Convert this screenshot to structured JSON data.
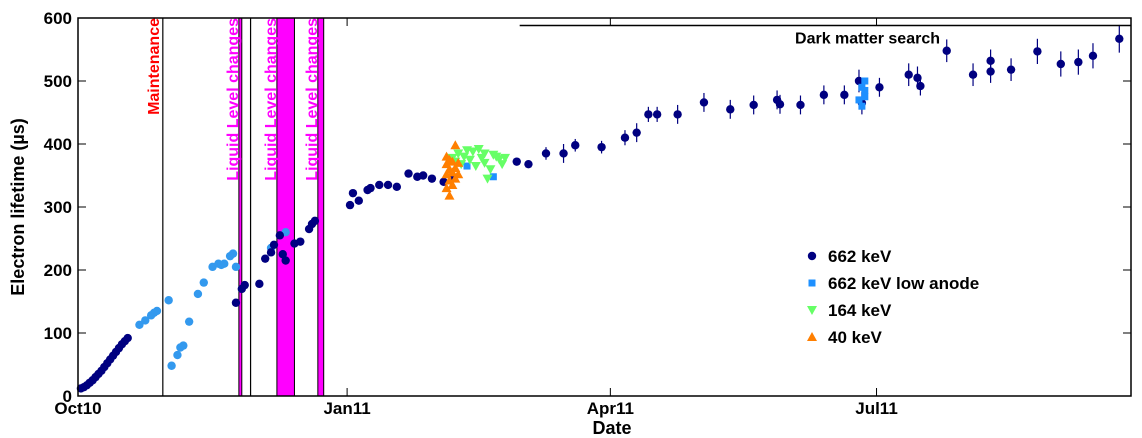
{
  "chart_data": {
    "type": "scatter",
    "title": "",
    "xlabel": "Date",
    "ylabel": "Electron lifetime (µs)",
    "xlim": [
      "2010-10-01",
      "2011-09-26"
    ],
    "ylim": [
      0,
      600
    ],
    "yticks": [
      0,
      100,
      200,
      300,
      400,
      500,
      600
    ],
    "xticks": [
      {
        "date": "2010-10-01",
        "label": "Oct10"
      },
      {
        "date": "2011-01-01",
        "label": "Jan11"
      },
      {
        "date": "2011-04-01",
        "label": "Apr11"
      },
      {
        "date": "2011-07-01",
        "label": "Jul11"
      }
    ],
    "grid": false,
    "legend": "right",
    "series": [
      {
        "name": "662 keV",
        "color": "#000080",
        "marker": "circle",
        "points": [
          [
            "2010-10-02",
            12,
            0
          ],
          [
            "2010-10-03",
            14,
            0
          ],
          [
            "2010-10-04",
            17,
            0
          ],
          [
            "2010-10-05",
            21,
            0
          ],
          [
            "2010-10-06",
            25,
            0
          ],
          [
            "2010-10-07",
            30,
            0
          ],
          [
            "2010-10-08",
            35,
            0
          ],
          [
            "2010-10-09",
            40,
            0
          ],
          [
            "2010-10-10",
            46,
            0
          ],
          [
            "2010-10-11",
            52,
            0
          ],
          [
            "2010-10-12",
            58,
            0
          ],
          [
            "2010-10-13",
            64,
            0
          ],
          [
            "2010-10-14",
            70,
            0
          ],
          [
            "2010-10-15",
            76,
            0
          ],
          [
            "2010-10-16",
            82,
            0
          ],
          [
            "2010-10-17",
            87,
            0
          ],
          [
            "2010-10-18",
            92,
            0
          ],
          [
            "2010-11-24",
            148,
            0
          ],
          [
            "2010-11-26",
            170,
            0
          ],
          [
            "2010-11-27",
            176,
            0
          ],
          [
            "2010-12-02",
            178,
            0
          ],
          [
            "2010-12-04",
            218,
            0
          ],
          [
            "2010-12-06",
            228,
            0
          ],
          [
            "2010-12-07",
            240,
            0
          ],
          [
            "2010-12-09",
            255,
            0
          ],
          [
            "2010-12-10",
            225,
            0
          ],
          [
            "2010-12-11",
            215,
            0
          ],
          [
            "2010-12-14",
            242,
            0
          ],
          [
            "2010-12-16",
            245,
            0
          ],
          [
            "2010-12-19",
            265,
            0
          ],
          [
            "2010-12-20",
            273,
            0
          ],
          [
            "2010-12-21",
            278,
            0
          ],
          [
            "2011-01-02",
            303,
            0
          ],
          [
            "2011-01-03",
            322,
            0
          ],
          [
            "2011-01-05",
            310,
            0
          ],
          [
            "2011-01-08",
            327,
            0
          ],
          [
            "2011-01-09",
            330,
            0
          ],
          [
            "2011-01-12",
            335,
            0
          ],
          [
            "2011-01-15",
            335,
            0
          ],
          [
            "2011-01-18",
            332,
            0
          ],
          [
            "2011-01-22",
            353,
            0
          ],
          [
            "2011-01-25",
            348,
            0
          ],
          [
            "2011-01-27",
            350,
            0
          ],
          [
            "2011-01-30",
            345,
            0
          ],
          [
            "2011-02-03",
            340,
            0
          ],
          [
            "2011-02-06",
            345,
            0
          ],
          [
            "2011-02-28",
            372,
            6
          ],
          [
            "2011-03-04",
            368,
            6
          ],
          [
            "2011-03-10",
            385,
            10
          ],
          [
            "2011-03-16",
            385,
            15
          ],
          [
            "2011-03-20",
            398,
            10
          ],
          [
            "2011-03-29",
            395,
            10
          ],
          [
            "2011-04-06",
            410,
            12
          ],
          [
            "2011-04-10",
            418,
            15
          ],
          [
            "2011-04-14",
            447,
            12
          ],
          [
            "2011-04-17",
            447,
            12
          ],
          [
            "2011-04-24",
            447,
            15
          ],
          [
            "2011-05-03",
            466,
            15
          ],
          [
            "2011-05-12",
            455,
            15
          ],
          [
            "2011-05-20",
            462,
            15
          ],
          [
            "2011-05-28",
            470,
            15
          ],
          [
            "2011-05-29",
            463,
            15
          ],
          [
            "2011-06-05",
            462,
            15
          ],
          [
            "2011-06-13",
            478,
            15
          ],
          [
            "2011-06-20",
            478,
            15
          ],
          [
            "2011-06-25",
            500,
            18
          ],
          [
            "2011-06-26",
            465,
            18
          ],
          [
            "2011-07-02",
            490,
            15
          ],
          [
            "2011-07-12",
            510,
            18
          ],
          [
            "2011-07-15",
            505,
            18
          ],
          [
            "2011-07-16",
            492,
            15
          ],
          [
            "2011-07-25",
            548,
            18
          ],
          [
            "2011-08-03",
            510,
            18
          ],
          [
            "2011-08-09",
            515,
            18
          ],
          [
            "2011-08-09",
            532,
            18
          ],
          [
            "2011-08-16",
            518,
            18
          ],
          [
            "2011-08-25",
            547,
            20
          ],
          [
            "2011-09-02",
            527,
            20
          ],
          [
            "2011-09-08",
            530,
            20
          ],
          [
            "2011-09-13",
            540,
            20
          ],
          [
            "2011-09-22",
            567,
            22
          ]
        ]
      },
      {
        "name": "662 keV low anode",
        "color": "#1E90FF",
        "marker": "square",
        "points": [
          [
            "2011-02-11",
            365
          ],
          [
            "2011-02-20",
            348
          ],
          [
            "2011-06-25",
            470
          ],
          [
            "2011-06-26",
            490
          ],
          [
            "2011-06-26",
            460
          ],
          [
            "2011-06-27",
            500
          ],
          [
            "2011-06-27",
            475
          ],
          [
            "2011-06-27",
            485
          ]
        ]
      },
      {
        "name": "164 keV",
        "color": "#66FF66",
        "marker": "triangle-down",
        "points": [
          [
            "2011-02-06",
            378
          ],
          [
            "2011-02-07",
            372
          ],
          [
            "2011-02-08",
            385
          ],
          [
            "2011-02-09",
            368
          ],
          [
            "2011-02-10",
            380
          ],
          [
            "2011-02-11",
            390
          ],
          [
            "2011-02-12",
            375
          ],
          [
            "2011-02-13",
            388
          ],
          [
            "2011-02-14",
            365
          ],
          [
            "2011-02-15",
            392
          ],
          [
            "2011-02-16",
            378
          ],
          [
            "2011-02-17",
            370
          ],
          [
            "2011-02-17",
            385
          ],
          [
            "2011-02-18",
            345
          ],
          [
            "2011-02-19",
            360
          ],
          [
            "2011-02-20",
            383
          ],
          [
            "2011-02-21",
            380
          ],
          [
            "2011-02-22",
            376
          ],
          [
            "2011-02-23",
            368
          ],
          [
            "2011-02-24",
            378
          ]
        ]
      },
      {
        "name": "40 keV",
        "color": "#FF7F00",
        "marker": "triangle-up",
        "points": [
          [
            "2011-02-04",
            330
          ],
          [
            "2011-02-04",
            352
          ],
          [
            "2011-02-04",
            368
          ],
          [
            "2011-02-04",
            380
          ],
          [
            "2011-02-05",
            318
          ],
          [
            "2011-02-05",
            342
          ],
          [
            "2011-02-05",
            360
          ],
          [
            "2011-02-05",
            375
          ],
          [
            "2011-02-06",
            335
          ],
          [
            "2011-02-06",
            355
          ],
          [
            "2011-02-06",
            372
          ],
          [
            "2011-02-07",
            345
          ],
          [
            "2011-02-07",
            362
          ],
          [
            "2011-02-07",
            398
          ],
          [
            "2011-02-08",
            352
          ],
          [
            "2011-02-08",
            370
          ]
        ]
      }
    ],
    "light_blue_points": [
      [
        "2010-10-22",
        113
      ],
      [
        "2010-10-24",
        120
      ],
      [
        "2010-10-26",
        128
      ],
      [
        "2010-10-27",
        132
      ],
      [
        "2010-10-28",
        135
      ],
      [
        "2010-11-01",
        152
      ],
      [
        "2010-11-02",
        48
      ],
      [
        "2010-11-04",
        65
      ],
      [
        "2010-11-05",
        77
      ],
      [
        "2010-11-06",
        80
      ],
      [
        "2010-11-08",
        118
      ],
      [
        "2010-11-11",
        162
      ],
      [
        "2010-11-13",
        180
      ],
      [
        "2010-11-16",
        205
      ],
      [
        "2010-11-18",
        210
      ],
      [
        "2010-11-19",
        208
      ],
      [
        "2010-11-20",
        210
      ],
      [
        "2010-11-22",
        222
      ],
      [
        "2010-11-23",
        226
      ],
      [
        "2010-11-24",
        205
      ],
      [
        "2010-12-06",
        235
      ],
      [
        "2010-12-11",
        260
      ]
    ],
    "vertical_lines": [
      {
        "date": "2010-10-30",
        "color": "#000000"
      },
      {
        "date": "2010-11-29",
        "color": "#000000"
      }
    ],
    "bands": [
      {
        "start": "2010-11-25",
        "end": "2010-11-26",
        "color": "#FF00FF"
      },
      {
        "start": "2010-12-08",
        "end": "2010-12-14",
        "color": "#FF00FF"
      },
      {
        "start": "2010-12-22",
        "end": "2010-12-24",
        "color": "#FF00FF"
      }
    ],
    "annotations": [
      {
        "text": "Maintenance",
        "date": "2010-10-27",
        "color": "#FF0000"
      },
      {
        "text": "Liquid Level changes",
        "date": "2010-11-23",
        "color": "#FF00FF"
      },
      {
        "text": "Liquid Level changes",
        "date": "2010-12-06",
        "color": "#FF00FF"
      },
      {
        "text": "Liquid Level changes",
        "date": "2010-12-20",
        "color": "#FF00FF"
      },
      {
        "text": "Dark matter search",
        "start": "2011-03-01",
        "end": "2011-09-26",
        "y": 588
      }
    ]
  }
}
